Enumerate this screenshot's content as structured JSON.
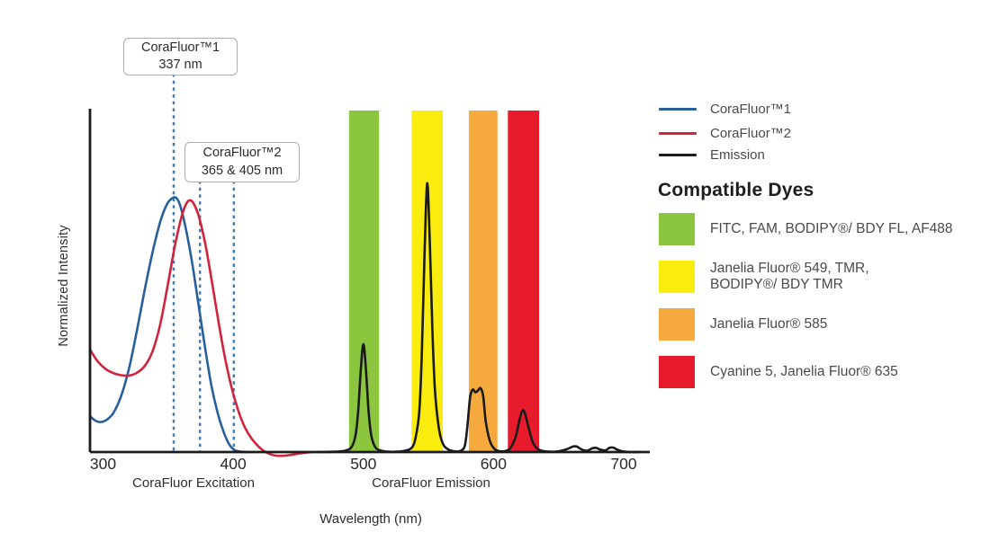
{
  "chart": {
    "y_axis_label": "Normalized Intensity",
    "x_axis_label": "Wavelength (nm)",
    "excitation_label": "CoraFluor Excitation",
    "emission_label": "CoraFluor Emission"
  },
  "annotations": [
    {
      "title": "CoraFluor™1",
      "subtitle": "337 nm"
    },
    {
      "title": "CoraFluor™2",
      "subtitle": "365 & 405 nm"
    }
  ],
  "legend": {
    "items": [
      {
        "label": "CoraFluor™1",
        "color": "#27609C"
      },
      {
        "label": "CoraFluor™2",
        "color": "#D2233C"
      },
      {
        "label": "Emission",
        "color": "#1B1B1B"
      }
    ]
  },
  "dyes": {
    "heading": "Compatible Dyes",
    "items": [
      {
        "label": "FITC, FAM, BODIPY®/ BDY FL, AF488",
        "color": "#8CC63F"
      },
      {
        "label": "Janelia Fluor® 549, TMR,\nBODIPY®/ BDY TMR",
        "color": "#F9EC0E"
      },
      {
        "label": "Janelia Fluor® 585",
        "color": "#F6A93C"
      },
      {
        "label": "Cyanine 5, Janelia Fluor® 635",
        "color": "#E81B2C"
      }
    ]
  },
  "chart_data": {
    "type": "line",
    "title": "CoraFluor excitation and emission spectra with compatible dye filter bands",
    "xlabel": "Wavelength (nm)",
    "ylabel": "Normalized Intensity",
    "xlim": [
      290,
      720
    ],
    "ylim": [
      0,
      1.0
    ],
    "x_ticks": [
      300,
      400,
      500,
      600,
      700
    ],
    "grid": false,
    "legend_position": "right",
    "axis_color": "#1A1A1A",
    "tick_label_color": "#2A2A2A",
    "dashed_line_color": "#4279AE",
    "bands": [
      {
        "name": "green",
        "range_nm": [
          489,
          512
        ],
        "color": "#8CC63F",
        "dyes": "FITC, FAM, BODIPY®/ BDY FL, AF488"
      },
      {
        "name": "yellow",
        "range_nm": [
          537,
          561
        ],
        "color": "#F9EC0E",
        "dyes": "Janelia Fluor® 549, TMR, BODIPY®/ BDY TMR"
      },
      {
        "name": "orange",
        "range_nm": [
          581,
          603
        ],
        "color": "#F6A93C",
        "dyes": "Janelia Fluor® 585"
      },
      {
        "name": "red",
        "range_nm": [
          611,
          635
        ],
        "color": "#E81B2C",
        "dyes": "Cyanine 5, Janelia Fluor® 635"
      }
    ],
    "annotation_lines": [
      {
        "label": "337 nm",
        "x_nm_drawn": [
          354.3
        ]
      },
      {
        "label": "365 & 405 nm",
        "x_nm_drawn": [
          374.5,
          400.5
        ]
      }
    ],
    "series": [
      {
        "name": "CoraFluor™1",
        "role": "excitation",
        "color": "#27609C",
        "points": [
          [
            290,
            0.105
          ],
          [
            294,
            0.092
          ],
          [
            298,
            0.088
          ],
          [
            303,
            0.095
          ],
          [
            308,
            0.115
          ],
          [
            314,
            0.165
          ],
          [
            320,
            0.245
          ],
          [
            326,
            0.355
          ],
          [
            332,
            0.475
          ],
          [
            338,
            0.585
          ],
          [
            344,
            0.675
          ],
          [
            349,
            0.725
          ],
          [
            353,
            0.743
          ],
          [
            356,
            0.745
          ],
          [
            359,
            0.725
          ],
          [
            363,
            0.665
          ],
          [
            368,
            0.565
          ],
          [
            373,
            0.44
          ],
          [
            378,
            0.315
          ],
          [
            383,
            0.2
          ],
          [
            388,
            0.115
          ],
          [
            393,
            0.055
          ],
          [
            397,
            0.022
          ],
          [
            401,
            0.006
          ],
          [
            406,
            0.001
          ],
          [
            412,
            0
          ]
        ]
      },
      {
        "name": "CoraFluor™2",
        "role": "excitation",
        "color": "#D2233C",
        "points": [
          [
            290,
            0.3
          ],
          [
            296,
            0.265
          ],
          [
            302,
            0.243
          ],
          [
            308,
            0.231
          ],
          [
            314,
            0.225
          ],
          [
            320,
            0.224
          ],
          [
            326,
            0.232
          ],
          [
            332,
            0.252
          ],
          [
            338,
            0.295
          ],
          [
            344,
            0.375
          ],
          [
            350,
            0.495
          ],
          [
            355,
            0.6
          ],
          [
            360,
            0.685
          ],
          [
            364,
            0.728
          ],
          [
            367,
            0.737
          ],
          [
            370,
            0.725
          ],
          [
            374,
            0.685
          ],
          [
            379,
            0.6
          ],
          [
            384,
            0.49
          ],
          [
            389,
            0.375
          ],
          [
            394,
            0.27
          ],
          [
            399,
            0.185
          ],
          [
            404,
            0.12
          ],
          [
            409,
            0.072
          ],
          [
            414,
            0.04
          ],
          [
            419,
            0.018
          ],
          [
            424,
            0.002
          ],
          [
            429,
            -0.007
          ],
          [
            434,
            -0.011
          ],
          [
            441,
            -0.01
          ],
          [
            448,
            -0.006
          ],
          [
            455,
            -0.002
          ],
          [
            462,
            0
          ]
        ]
      },
      {
        "name": "Emission",
        "role": "emission",
        "color": "#1A1A1A",
        "points": [
          [
            465,
            0
          ],
          [
            478,
            0.001
          ],
          [
            486,
            0.004
          ],
          [
            491,
            0.015
          ],
          [
            494,
            0.05
          ],
          [
            496,
            0.12
          ],
          [
            498,
            0.24
          ],
          [
            500,
            0.316
          ],
          [
            502,
            0.24
          ],
          [
            504,
            0.12
          ],
          [
            506,
            0.05
          ],
          [
            509,
            0.015
          ],
          [
            513,
            0.005
          ],
          [
            519,
            0.001
          ],
          [
            526,
            0.001
          ],
          [
            532,
            0.004
          ],
          [
            537,
            0.012
          ],
          [
            540,
            0.04
          ],
          [
            543,
            0.12
          ],
          [
            545,
            0.3
          ],
          [
            547,
            0.58
          ],
          [
            549,
            0.787
          ],
          [
            551,
            0.62
          ],
          [
            553,
            0.36
          ],
          [
            555,
            0.18
          ],
          [
            558,
            0.07
          ],
          [
            561,
            0.025
          ],
          [
            565,
            0.008
          ],
          [
            570,
            0.002
          ],
          [
            575,
            0.004
          ],
          [
            578,
            0.02
          ],
          [
            580,
            0.08
          ],
          [
            582,
            0.16
          ],
          [
            584,
            0.183
          ],
          [
            586,
            0.175
          ],
          [
            588,
            0.18
          ],
          [
            590,
            0.187
          ],
          [
            592,
            0.165
          ],
          [
            594,
            0.09
          ],
          [
            597,
            0.035
          ],
          [
            600,
            0.012
          ],
          [
            604,
            0.003
          ],
          [
            609,
            0.003
          ],
          [
            613,
            0.012
          ],
          [
            617,
            0.045
          ],
          [
            620,
            0.095
          ],
          [
            622,
            0.12
          ],
          [
            624,
            0.115
          ],
          [
            627,
            0.07
          ],
          [
            630,
            0.03
          ],
          [
            633,
            0.012
          ],
          [
            637,
            0.004
          ],
          [
            643,
            0.001
          ],
          [
            650,
            0.002
          ],
          [
            656,
            0.008
          ],
          [
            661,
            0.016
          ],
          [
            664,
            0.016
          ],
          [
            668,
            0.007
          ],
          [
            672,
            0.004
          ],
          [
            676,
            0.011
          ],
          [
            679,
            0.012
          ],
          [
            682,
            0.007
          ],
          [
            686,
            0.005
          ],
          [
            689,
            0.012
          ],
          [
            692,
            0.013
          ],
          [
            695,
            0.007
          ],
          [
            699,
            0.002
          ],
          [
            705,
            0
          ],
          [
            712,
            0
          ]
        ]
      }
    ],
    "peak_summary": {
      "excitation_peaks_labeled_nm": [
        337,
        365,
        405
      ],
      "emission_peaks_nm": [
        500,
        549,
        590,
        623
      ],
      "emission_peak_heights": [
        0.32,
        0.79,
        0.19,
        0.12
      ]
    }
  }
}
